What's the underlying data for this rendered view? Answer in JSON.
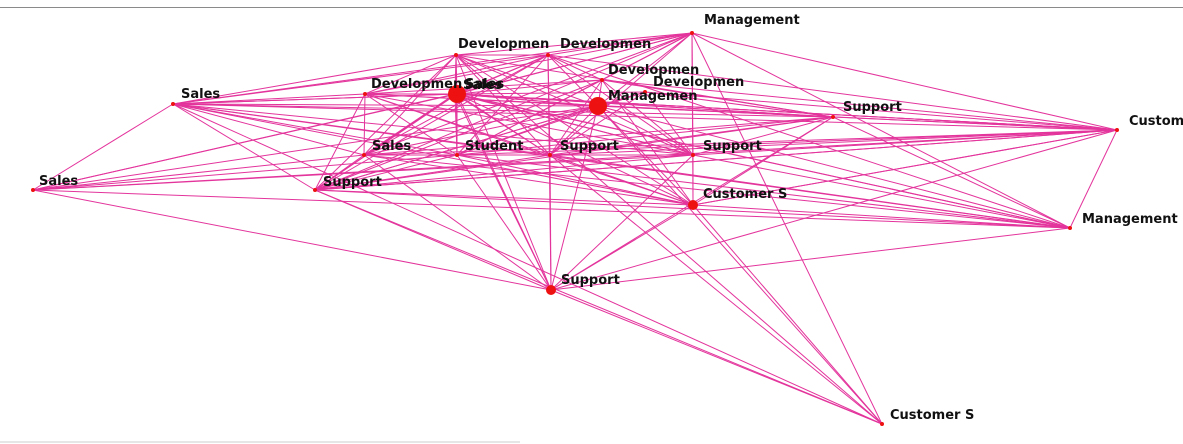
{
  "graph": {
    "edge_color": "#e3349c",
    "node_color": "#ee1111",
    "nodes": [
      {
        "id": "n1",
        "label": "Management",
        "marker": "dot-small"
      },
      {
        "id": "n2",
        "label": "Developmen",
        "marker": "dot-small"
      },
      {
        "id": "n3",
        "label": "Developmen",
        "marker": "dot-small"
      },
      {
        "id": "n4",
        "label": "Developmen",
        "marker": "dot-small"
      },
      {
        "id": "n5",
        "label": "Sales",
        "marker": "dot-small"
      },
      {
        "id": "n6",
        "label": "Developmen",
        "marker": "dot-small"
      },
      {
        "id": "n7",
        "label": "Sales",
        "marker": "dot-small"
      },
      {
        "id": "n8",
        "label": "Sales",
        "marker": "dot-large"
      },
      {
        "id": "n9",
        "label": "Managemen",
        "marker": "dot-large"
      },
      {
        "id": "n10",
        "label": "Developmen",
        "marker": "dot-small"
      },
      {
        "id": "n11",
        "label": "Support",
        "marker": "dot-small"
      },
      {
        "id": "n12",
        "label": "Custom",
        "marker": "dot-small"
      },
      {
        "id": "n13",
        "label": "Sales",
        "marker": "dot-small"
      },
      {
        "id": "n14",
        "label": "Student",
        "marker": "dot-small"
      },
      {
        "id": "n15",
        "label": "Support",
        "marker": "dot-small"
      },
      {
        "id": "n16",
        "label": "Support",
        "marker": "dot-small"
      },
      {
        "id": "n17",
        "label": "Sales",
        "marker": "dot-small"
      },
      {
        "id": "n18",
        "label": "Support",
        "marker": "dot-small"
      },
      {
        "id": "n19",
        "label": "Customer S",
        "marker": "dot-medium"
      },
      {
        "id": "n20",
        "label": "Management",
        "marker": "dot-small"
      },
      {
        "id": "n21",
        "label": "Support",
        "marker": "dot-medium"
      },
      {
        "id": "n22",
        "label": "Customer S",
        "marker": "dot-small"
      }
    ],
    "edges": [
      [
        "n1",
        "n2"
      ],
      [
        "n1",
        "n3"
      ],
      [
        "n1",
        "n6"
      ],
      [
        "n1",
        "n7"
      ],
      [
        "n1",
        "n8"
      ],
      [
        "n1",
        "n9"
      ],
      [
        "n1",
        "n13"
      ],
      [
        "n1",
        "n14"
      ],
      [
        "n1",
        "n15"
      ],
      [
        "n1",
        "n16"
      ],
      [
        "n1",
        "n17"
      ],
      [
        "n1",
        "n18"
      ],
      [
        "n1",
        "n19"
      ],
      [
        "n1",
        "n20"
      ],
      [
        "n1",
        "n12"
      ],
      [
        "n2",
        "n3"
      ],
      [
        "n2",
        "n6"
      ],
      [
        "n2",
        "n8"
      ],
      [
        "n2",
        "n9"
      ],
      [
        "n2",
        "n13"
      ],
      [
        "n2",
        "n14"
      ],
      [
        "n2",
        "n15"
      ],
      [
        "n2",
        "n16"
      ],
      [
        "n2",
        "n18"
      ],
      [
        "n2",
        "n19"
      ],
      [
        "n2",
        "n21"
      ],
      [
        "n2",
        "n7"
      ],
      [
        "n2",
        "n11"
      ],
      [
        "n2",
        "n17"
      ],
      [
        "n3",
        "n6"
      ],
      [
        "n3",
        "n8"
      ],
      [
        "n3",
        "n9"
      ],
      [
        "n3",
        "n13"
      ],
      [
        "n3",
        "n14"
      ],
      [
        "n3",
        "n15"
      ],
      [
        "n3",
        "n16"
      ],
      [
        "n3",
        "n18"
      ],
      [
        "n3",
        "n21"
      ],
      [
        "n3",
        "n7"
      ],
      [
        "n3",
        "n17"
      ],
      [
        "n3",
        "n12"
      ],
      [
        "n3",
        "n20"
      ],
      [
        "n6",
        "n8"
      ],
      [
        "n6",
        "n9"
      ],
      [
        "n6",
        "n13"
      ],
      [
        "n6",
        "n14"
      ],
      [
        "n6",
        "n15"
      ],
      [
        "n6",
        "n16"
      ],
      [
        "n6",
        "n18"
      ],
      [
        "n6",
        "n7"
      ],
      [
        "n6",
        "n17"
      ],
      [
        "n6",
        "n11"
      ],
      [
        "n6",
        "n19"
      ],
      [
        "n7",
        "n8"
      ],
      [
        "n7",
        "n9"
      ],
      [
        "n7",
        "n13"
      ],
      [
        "n7",
        "n14"
      ],
      [
        "n7",
        "n15"
      ],
      [
        "n7",
        "n16"
      ],
      [
        "n7",
        "n18"
      ],
      [
        "n7",
        "n17"
      ],
      [
        "n7",
        "n11"
      ],
      [
        "n7",
        "n12"
      ],
      [
        "n7",
        "n20"
      ],
      [
        "n7",
        "n19"
      ],
      [
        "n8",
        "n9"
      ],
      [
        "n8",
        "n13"
      ],
      [
        "n8",
        "n14"
      ],
      [
        "n8",
        "n15"
      ],
      [
        "n8",
        "n16"
      ],
      [
        "n8",
        "n18"
      ],
      [
        "n8",
        "n17"
      ],
      [
        "n8",
        "n11"
      ],
      [
        "n8",
        "n12"
      ],
      [
        "n8",
        "n20"
      ],
      [
        "n8",
        "n19"
      ],
      [
        "n8",
        "n21"
      ],
      [
        "n9",
        "n13"
      ],
      [
        "n9",
        "n14"
      ],
      [
        "n9",
        "n15"
      ],
      [
        "n9",
        "n16"
      ],
      [
        "n9",
        "n18"
      ],
      [
        "n9",
        "n17"
      ],
      [
        "n9",
        "n11"
      ],
      [
        "n9",
        "n12"
      ],
      [
        "n9",
        "n20"
      ],
      [
        "n9",
        "n19"
      ],
      [
        "n9",
        "n21"
      ],
      [
        "n10",
        "n8"
      ],
      [
        "n10",
        "n9"
      ],
      [
        "n10",
        "n14"
      ],
      [
        "n10",
        "n15"
      ],
      [
        "n10",
        "n16"
      ],
      [
        "n10",
        "n11"
      ],
      [
        "n10",
        "n12"
      ],
      [
        "n10",
        "n18"
      ],
      [
        "n11",
        "n13"
      ],
      [
        "n11",
        "n14"
      ],
      [
        "n11",
        "n15"
      ],
      [
        "n11",
        "n16"
      ],
      [
        "n11",
        "n18"
      ],
      [
        "n11",
        "n12"
      ],
      [
        "n11",
        "n20"
      ],
      [
        "n11",
        "n19"
      ],
      [
        "n11",
        "n17"
      ],
      [
        "n11",
        "n21"
      ],
      [
        "n12",
        "n13"
      ],
      [
        "n12",
        "n14"
      ],
      [
        "n12",
        "n15"
      ],
      [
        "n12",
        "n16"
      ],
      [
        "n12",
        "n18"
      ],
      [
        "n12",
        "n20"
      ],
      [
        "n12",
        "n19"
      ],
      [
        "n12",
        "n17"
      ],
      [
        "n12",
        "n21"
      ],
      [
        "n13",
        "n14"
      ],
      [
        "n13",
        "n15"
      ],
      [
        "n13",
        "n16"
      ],
      [
        "n13",
        "n18"
      ],
      [
        "n13",
        "n17"
      ],
      [
        "n13",
        "n19"
      ],
      [
        "n13",
        "n20"
      ],
      [
        "n13",
        "n21"
      ],
      [
        "n14",
        "n15"
      ],
      [
        "n14",
        "n16"
      ],
      [
        "n14",
        "n18"
      ],
      [
        "n14",
        "n17"
      ],
      [
        "n14",
        "n19"
      ],
      [
        "n14",
        "n20"
      ],
      [
        "n14",
        "n21"
      ],
      [
        "n15",
        "n16"
      ],
      [
        "n15",
        "n18"
      ],
      [
        "n15",
        "n17"
      ],
      [
        "n15",
        "n19"
      ],
      [
        "n15",
        "n20"
      ],
      [
        "n15",
        "n21"
      ],
      [
        "n15",
        "n22"
      ],
      [
        "n16",
        "n18"
      ],
      [
        "n16",
        "n17"
      ],
      [
        "n16",
        "n19"
      ],
      [
        "n16",
        "n20"
      ],
      [
        "n16",
        "n21"
      ],
      [
        "n17",
        "n18"
      ],
      [
        "n17",
        "n20"
      ],
      [
        "n17",
        "n21"
      ],
      [
        "n17",
        "n5"
      ],
      [
        "n17",
        "n12"
      ],
      [
        "n18",
        "n19"
      ],
      [
        "n18",
        "n20"
      ],
      [
        "n18",
        "n21"
      ],
      [
        "n18",
        "n22"
      ],
      [
        "n18",
        "n12"
      ],
      [
        "n19",
        "n20"
      ],
      [
        "n19",
        "n21"
      ],
      [
        "n19",
        "n22"
      ],
      [
        "n19",
        "n12"
      ],
      [
        "n20",
        "n21"
      ],
      [
        "n20",
        "n5"
      ],
      [
        "n21",
        "n22"
      ],
      [
        "n21",
        "n5"
      ],
      [
        "n5",
        "n7"
      ],
      [
        "n5",
        "n8"
      ],
      [
        "n5",
        "n13"
      ],
      [
        "n5",
        "n14"
      ],
      [
        "n5",
        "n16"
      ],
      [
        "n5",
        "n9"
      ],
      [
        "n5",
        "n12"
      ],
      [
        "n4",
        "n8"
      ],
      [
        "n4",
        "n9"
      ],
      [
        "n4",
        "n15"
      ],
      [
        "n4",
        "n16"
      ],
      [
        "n4",
        "n18"
      ],
      [
        "n4",
        "n11"
      ],
      [
        "n4",
        "n12"
      ],
      [
        "n4",
        "n19"
      ],
      [
        "n4",
        "n1"
      ],
      [
        "n4",
        "n14"
      ],
      [
        "n4",
        "n6"
      ],
      [
        "n4",
        "n3"
      ],
      [
        "n7",
        "n22"
      ],
      [
        "n2",
        "n22"
      ],
      [
        "n1",
        "n22"
      ],
      [
        "n9",
        "n22"
      ]
    ]
  }
}
